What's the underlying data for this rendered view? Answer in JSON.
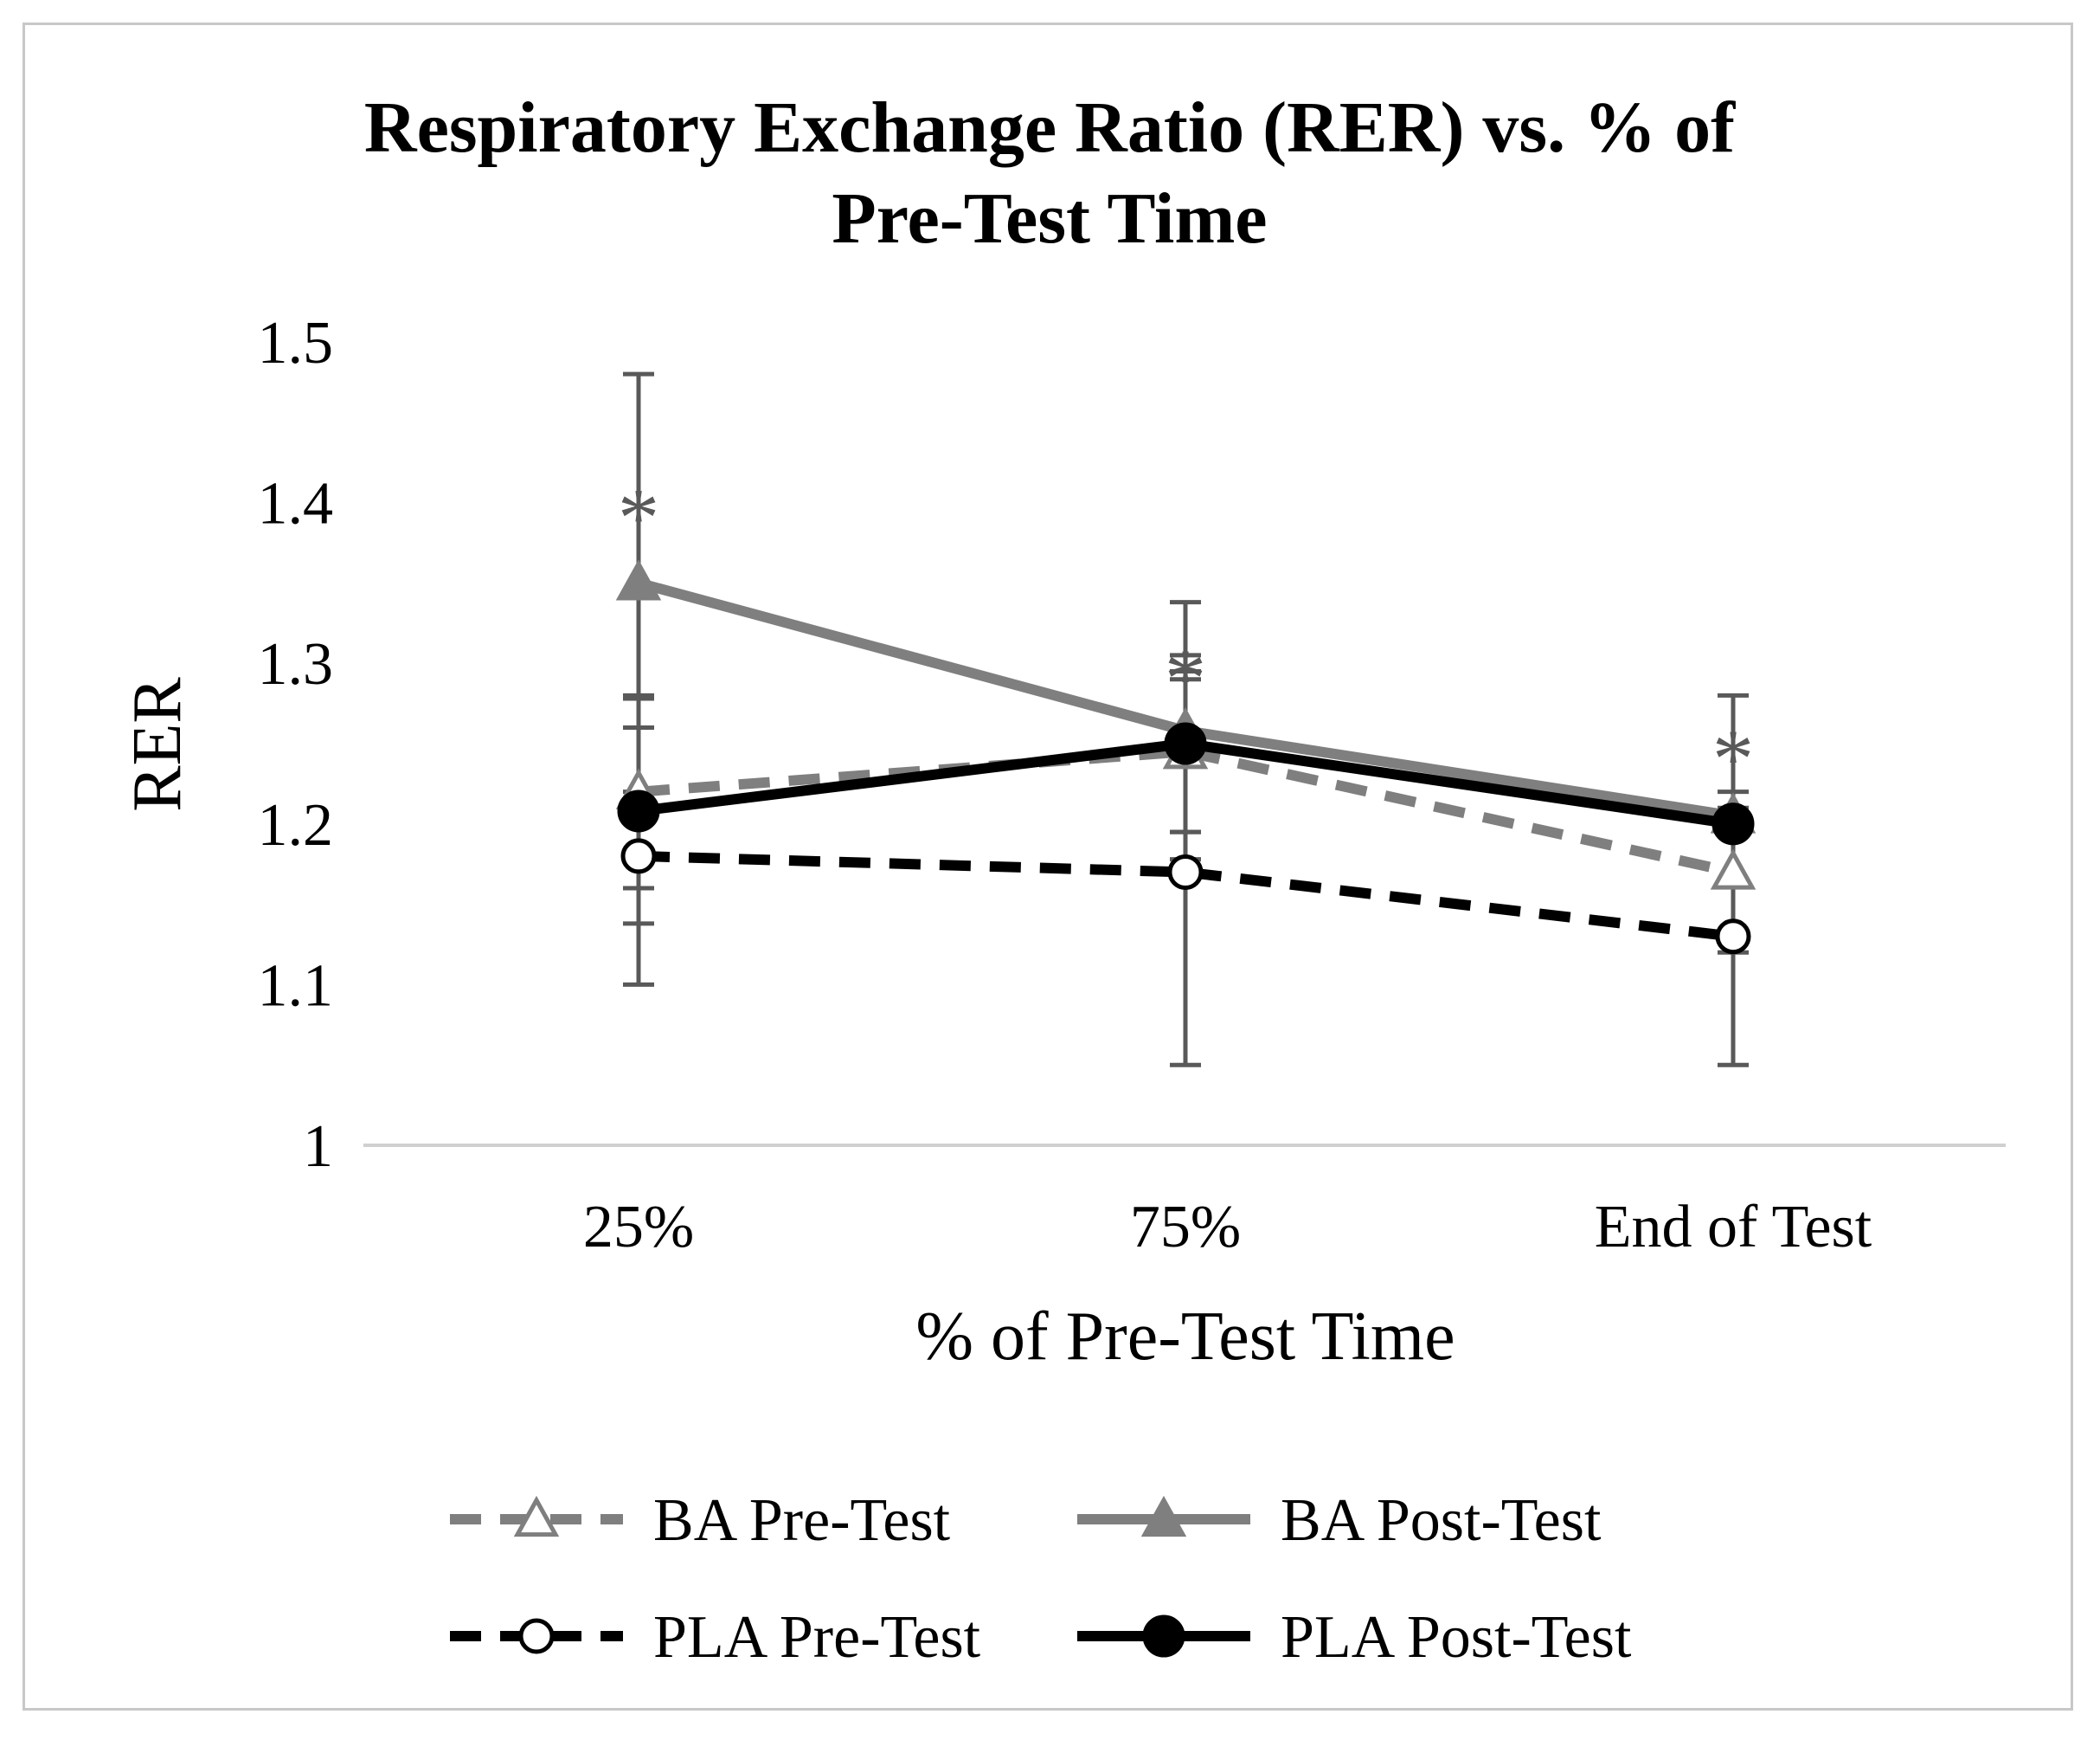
{
  "chart_data": {
    "type": "line",
    "title": "Respiratory Exchange Ratio (RER) vs. % of Pre-Test Time",
    "title_lines": [
      "Respiratory Exchange Ratio (RER) vs. % of",
      "Pre-Test Time"
    ],
    "xlabel": "% of Pre-Test Time",
    "ylabel": "RER",
    "categories": [
      "25%",
      "75%",
      "End of Test"
    ],
    "ylim": [
      1,
      1.5
    ],
    "yticks": [
      1,
      1.1,
      1.2,
      1.3,
      1.4,
      1.5
    ],
    "ytick_labels": [
      "1",
      "1.1",
      "1.2",
      "1.3",
      "1.4",
      "1.5"
    ],
    "series": [
      {
        "name": "BA Pre-Test",
        "values": [
          1.22,
          1.245,
          1.17
        ],
        "error": [
          0.06,
          0.05,
          0.05
        ],
        "color": "#7f7f7f",
        "dashed": true,
        "marker": "triangle-open"
      },
      {
        "name": "BA Post-Test",
        "values": [
          1.35,
          1.258,
          1.205
        ],
        "error": [
          0.13,
          0.08,
          0.075
        ],
        "color": "#7f7f7f",
        "dashed": false,
        "marker": "triangle-filled"
      },
      {
        "name": "PLA Pre-Test",
        "values": [
          1.18,
          1.17,
          1.13
        ],
        "error": [
          0.08,
          0.12,
          0.08
        ],
        "color": "#000000",
        "dashed": true,
        "marker": "circle-open"
      },
      {
        "name": "PLA Post-Test",
        "values": [
          1.208,
          1.25,
          1.2
        ],
        "error": [
          0.07,
          0.055,
          0.0
        ],
        "color": "#000000",
        "dashed": false,
        "marker": "circle-filled"
      }
    ],
    "annotations": [
      {
        "text": "*",
        "category": "25%",
        "y": 1.4
      },
      {
        "text": "*",
        "category": "75%",
        "y": 1.3
      },
      {
        "text": "*",
        "category": "End of Test",
        "y": 1.25
      }
    ],
    "legend": "bottom",
    "grid": false
  }
}
